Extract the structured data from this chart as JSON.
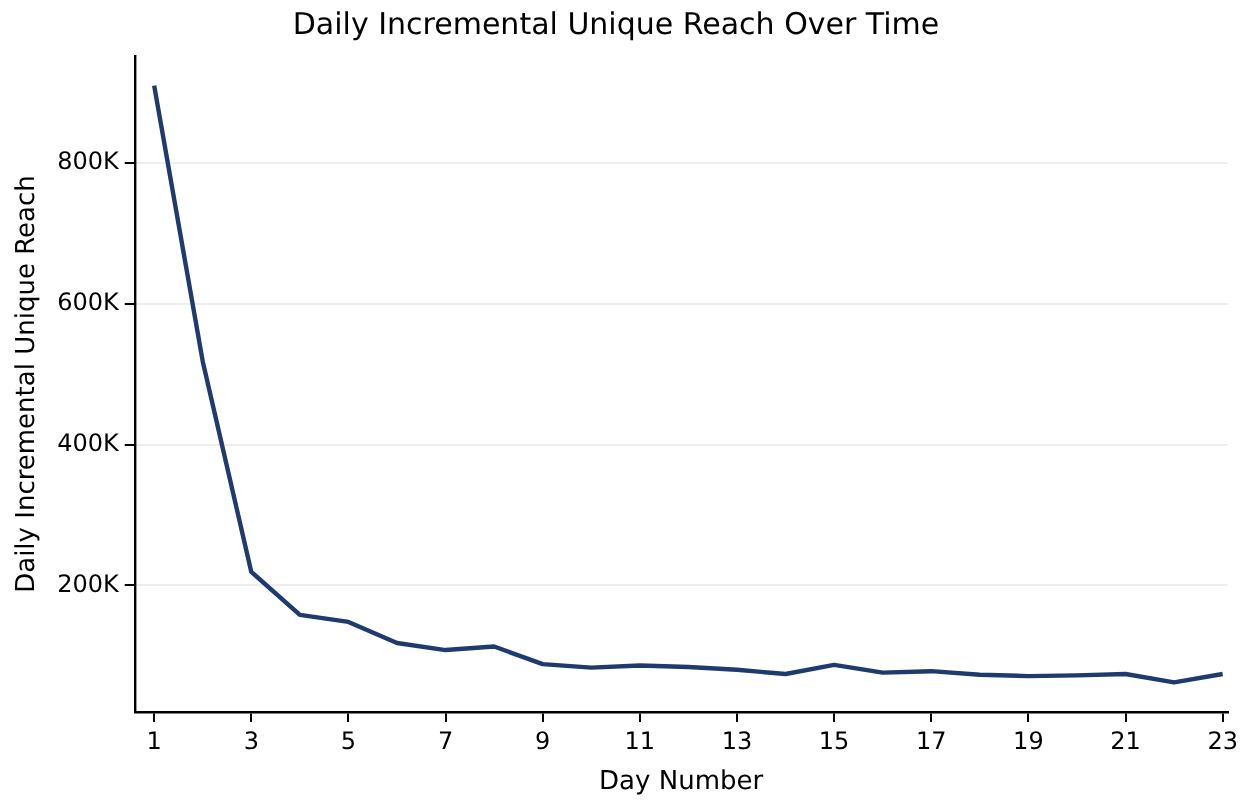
{
  "chart_data": {
    "type": "line",
    "title": "Daily Incremental Unique Reach Over Time",
    "xlabel": "Day Number",
    "ylabel": "Daily Incremental Unique Reach",
    "x": [
      1,
      2,
      3,
      4,
      5,
      6,
      7,
      8,
      9,
      10,
      11,
      12,
      13,
      14,
      15,
      16,
      17,
      18,
      19,
      20,
      21,
      22,
      23
    ],
    "series": [
      {
        "color": "#1f3a6e",
        "values": [
          910000,
          518000,
          219000,
          158000,
          148000,
          118000,
          108000,
          113000,
          88000,
          83000,
          86000,
          84000,
          80000,
          74000,
          87000,
          76000,
          78000,
          73000,
          71000,
          72000,
          74000,
          62000,
          74000
        ]
      }
    ],
    "xlim": [
      0.6,
      23.1
    ],
    "xticks": [
      1,
      3,
      5,
      7,
      9,
      11,
      13,
      15,
      17,
      19,
      21,
      23
    ],
    "ylim": [
      20000,
      952000
    ],
    "yticks": [
      {
        "value": 200000,
        "label": "200K"
      },
      {
        "value": 400000,
        "label": "400K"
      },
      {
        "value": 600000,
        "label": "600K"
      },
      {
        "value": 800000,
        "label": "800K"
      }
    ],
    "grid": "y",
    "legend": false,
    "marker": "none",
    "line_style": "solid"
  }
}
